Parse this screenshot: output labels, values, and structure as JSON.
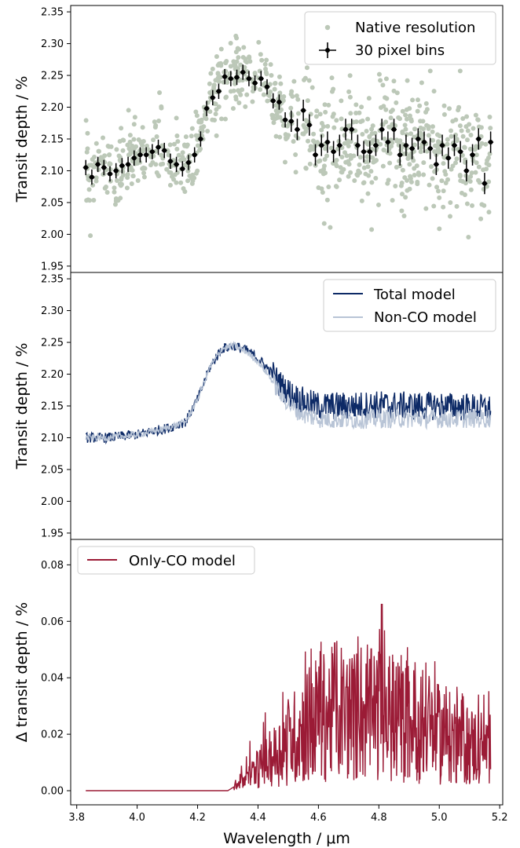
{
  "colors": {
    "native": "#bcc8b8",
    "binned": "#000000",
    "total_model": "#0d2a66",
    "nonco_model": "#b8c4d6",
    "only_co": "#9b1b36"
  },
  "chart_data": [
    {
      "type": "scatter",
      "panel": "top",
      "xlabel": "",
      "ylabel": "Transit depth / %",
      "xlim": [
        3.78,
        5.21
      ],
      "ylim": [
        1.94,
        2.36
      ],
      "yticks": [
        "1.95",
        "2.00",
        "2.05",
        "2.10",
        "2.15",
        "2.20",
        "2.25",
        "2.30",
        "2.35"
      ],
      "legend": {
        "position": "top-right",
        "entries": [
          "Native resolution",
          "30 pixel bins"
        ]
      },
      "series": [
        {
          "name": "Native resolution",
          "style": "points",
          "note": "about 900 unbinned points scattered around the binned values with spread ~0.05",
          "spread": 0.05,
          "count": 900
        },
        {
          "name": "30 pixel bins",
          "style": "errorbar",
          "yerr": 0.012,
          "x": [
            3.83,
            3.85,
            3.87,
            3.89,
            3.91,
            3.93,
            3.95,
            3.97,
            3.99,
            4.01,
            4.03,
            4.05,
            4.07,
            4.09,
            4.11,
            4.13,
            4.15,
            4.17,
            4.19,
            4.21,
            4.23,
            4.25,
            4.27,
            4.29,
            4.31,
            4.33,
            4.35,
            4.37,
            4.39,
            4.41,
            4.43,
            4.45,
            4.47,
            4.49,
            4.51,
            4.53,
            4.55,
            4.57,
            4.59,
            4.61,
            4.63,
            4.65,
            4.67,
            4.69,
            4.71,
            4.73,
            4.75,
            4.77,
            4.79,
            4.81,
            4.83,
            4.85,
            4.87,
            4.89,
            4.91,
            4.93,
            4.95,
            4.97,
            4.99,
            5.01,
            5.03,
            5.05,
            5.07,
            5.09,
            5.11,
            5.13,
            5.15,
            5.17
          ],
          "y": [
            2.105,
            2.09,
            2.11,
            2.105,
            2.095,
            2.1,
            2.108,
            2.11,
            2.12,
            2.125,
            2.125,
            2.13,
            2.137,
            2.132,
            2.115,
            2.11,
            2.103,
            2.113,
            2.125,
            2.15,
            2.198,
            2.215,
            2.225,
            2.248,
            2.245,
            2.247,
            2.255,
            2.245,
            2.238,
            2.245,
            2.232,
            2.21,
            2.208,
            2.18,
            2.178,
            2.165,
            2.195,
            2.172,
            2.125,
            2.14,
            2.145,
            2.13,
            2.14,
            2.165,
            2.165,
            2.14,
            2.13,
            2.13,
            2.14,
            2.165,
            2.145,
            2.165,
            2.125,
            2.14,
            2.135,
            2.15,
            2.145,
            2.135,
            2.11,
            2.14,
            2.12,
            2.14,
            2.13,
            2.1,
            2.125,
            2.15,
            2.08,
            2.145
          ]
        }
      ]
    },
    {
      "type": "line",
      "panel": "middle",
      "xlabel": "",
      "ylabel": "Transit depth / %",
      "xlim": [
        3.78,
        5.21
      ],
      "ylim": [
        1.94,
        2.36
      ],
      "yticks": [
        "1.95",
        "2.00",
        "2.05",
        "2.10",
        "2.15",
        "2.20",
        "2.25",
        "2.30",
        "2.35"
      ],
      "legend": {
        "position": "top-right",
        "entries": [
          "Total model",
          "Non-CO model"
        ]
      },
      "series": [
        {
          "name": "Total model",
          "x": [
            3.83,
            3.9,
            4.0,
            4.1,
            4.16,
            4.2,
            4.24,
            4.28,
            4.32,
            4.36,
            4.4,
            4.44,
            4.48,
            4.52,
            4.56,
            4.6,
            4.7,
            4.8,
            4.9,
            5.0,
            5.1,
            5.17
          ],
          "y": [
            2.1,
            2.1,
            2.105,
            2.115,
            2.125,
            2.16,
            2.21,
            2.24,
            2.245,
            2.238,
            2.225,
            2.205,
            2.18,
            2.165,
            2.155,
            2.15,
            2.15,
            2.152,
            2.15,
            2.15,
            2.148,
            2.145
          ],
          "noise": 0.012
        },
        {
          "name": "Non-CO model",
          "x": [
            3.83,
            3.9,
            4.0,
            4.1,
            4.16,
            4.2,
            4.24,
            4.28,
            4.32,
            4.36,
            4.4,
            4.44,
            4.48,
            4.52,
            4.56,
            4.6,
            4.7,
            4.8,
            4.9,
            5.0,
            5.1,
            5.17
          ],
          "y": [
            2.1,
            2.1,
            2.105,
            2.115,
            2.125,
            2.16,
            2.21,
            2.24,
            2.245,
            2.236,
            2.22,
            2.195,
            2.165,
            2.145,
            2.135,
            2.13,
            2.128,
            2.13,
            2.13,
            2.13,
            2.13,
            2.13
          ],
          "noise": 0.008
        }
      ]
    },
    {
      "type": "line",
      "panel": "bottom",
      "xlabel": "Wavelength / μm",
      "ylabel": "Δ transit depth / %",
      "xlim": [
        3.78,
        5.21
      ],
      "ylim": [
        -0.005,
        0.089
      ],
      "yticks": [
        "0.00",
        "0.02",
        "0.04",
        "0.06",
        "0.08"
      ],
      "xticks": [
        "3.8",
        "4.0",
        "4.2",
        "4.4",
        "4.6",
        "4.8",
        "5.0",
        "5.2"
      ],
      "legend": {
        "position": "top-left",
        "entries": [
          "Only-CO model"
        ]
      },
      "series": [
        {
          "name": "Only-CO model",
          "x": [
            3.83,
            4.3,
            4.33,
            4.36,
            4.4,
            4.45,
            4.5,
            4.55,
            4.6,
            4.65,
            4.7,
            4.75,
            4.8,
            4.85,
            4.9,
            4.95,
            5.0,
            5.05,
            5.1,
            5.17
          ],
          "y": [
            0.0,
            0.0,
            0.002,
            0.004,
            0.008,
            0.012,
            0.017,
            0.022,
            0.026,
            0.027,
            0.027,
            0.026,
            0.027,
            0.025,
            0.024,
            0.022,
            0.02,
            0.018,
            0.016,
            0.015
          ],
          "peak": {
            "x": 4.81,
            "y": 0.066
          },
          "noise": 0.012
        }
      ]
    }
  ],
  "axes": {
    "xticks": [
      "3.8",
      "4.0",
      "4.2",
      "4.4",
      "4.6",
      "4.8",
      "5.0",
      "5.2"
    ],
    "xlabel": "Wavelength / μm"
  }
}
